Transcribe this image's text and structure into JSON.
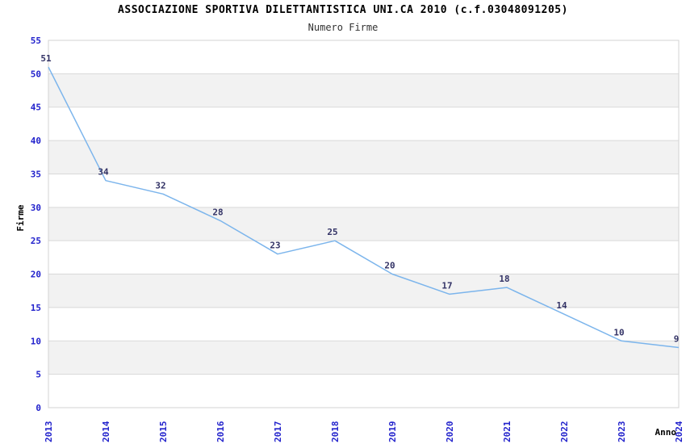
{
  "header": {
    "title": "ASSOCIAZIONE SPORTIVA DILETTANTISTICA UNI.CA 2010 (c.f.03048091205)",
    "subtitle": "Numero Firme"
  },
  "chart_data": {
    "type": "line",
    "title": "ASSOCIAZIONE SPORTIVA DILETTANTISTICA UNI.CA 2010 (c.f.03048091205)",
    "subtitle": "Numero Firme",
    "xlabel": "Anno",
    "ylabel": "Firme",
    "categories": [
      "2013",
      "2014",
      "2015",
      "2016",
      "2017",
      "2018",
      "2019",
      "2020",
      "2021",
      "2022",
      "2023",
      "2024"
    ],
    "values": [
      51,
      34,
      32,
      28,
      23,
      25,
      20,
      17,
      18,
      14,
      10,
      9
    ],
    "data_labels_shown": [
      51,
      34,
      32,
      28,
      23,
      25,
      20,
      17,
      18,
      14,
      10,
      9
    ],
    "ylim": [
      0,
      55
    ],
    "ytick_step": 5,
    "yticks": [
      0,
      5,
      10,
      15,
      20,
      25,
      30,
      35,
      40,
      45,
      50,
      55
    ],
    "grid": "horizontal",
    "alternating_bands": true,
    "legend": "none",
    "colors": {
      "line": "#7cb5ec",
      "tick_label": "#2222cc",
      "data_label": "#333366",
      "band_gray": "#f2f2f2",
      "grid_line": "#d9d9d9",
      "plot_border": "#d3d3d3",
      "title": "#000000",
      "subtitle": "#333333",
      "axis_title": "#000000",
      "background": "#ffffff"
    }
  }
}
